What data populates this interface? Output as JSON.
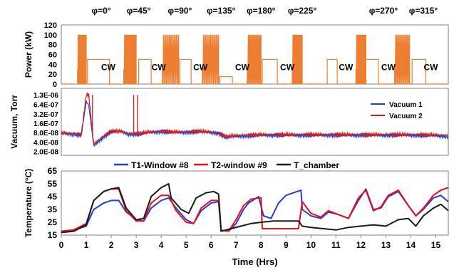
{
  "chart_data": [
    {
      "type": "line",
      "ylabel": "Power (kW)",
      "ylim": [
        0,
        120
      ],
      "yticks": [
        "0",
        "20",
        "40",
        "60",
        "80",
        "100",
        "120"
      ],
      "xlim": [
        0,
        15.5
      ],
      "grid": false,
      "phase_labels": [
        {
          "label": "φ=0°",
          "x": 1.6
        },
        {
          "label": "φ=45°",
          "x": 3.1
        },
        {
          "label": "φ=90°",
          "x": 4.75
        },
        {
          "label": "φ=135°",
          "x": 6.4
        },
        {
          "label": "φ=180°",
          "x": 8.0
        },
        {
          "label": "φ=225°",
          "x": 9.65
        },
        {
          "label": "φ=270°",
          "x": 12.9
        },
        {
          "label": "φ=315°",
          "x": 14.5
        }
      ],
      "annotations": [
        {
          "text": "CW",
          "x": 1.88,
          "y": 28
        },
        {
          "text": "CW",
          "x": 3.9,
          "y": 28
        },
        {
          "text": "CW",
          "x": 5.57,
          "y": 28
        },
        {
          "text": "CW",
          "x": 7.25,
          "y": 28
        },
        {
          "text": "CW",
          "x": 9.05,
          "y": 28
        },
        {
          "text": "CW",
          "x": 11.4,
          "y": 28
        },
        {
          "text": "CW",
          "x": 13.1,
          "y": 28
        },
        {
          "text": "CW",
          "x": 14.8,
          "y": 28
        }
      ],
      "series": [
        {
          "color": "#ed7d31",
          "baseline": 0,
          "blocks": [
            {
              "start": 0.55,
              "burst": [
                0.65,
                1.0
              ],
              "cw": [
                1.05,
                1.93
              ],
              "cw_level": 50
            },
            {
              "start": 2.5,
              "burst": [
                2.5,
                3.0
              ],
              "cw": [
                3.1,
                3.6
              ],
              "cw_level": 50
            },
            {
              "start": 4.05,
              "burst": [
                4.05,
                4.7
              ],
              "cw": [
                4.75,
                5.2
              ],
              "cw_level": 50
            },
            {
              "start": 5.65,
              "burst": [
                5.65,
                6.3
              ],
              "cw": [
                6.35,
                6.85
              ],
              "cw_level": 15
            },
            {
              "start": 7.45,
              "burst": [
                7.45,
                8.0
              ],
              "cw": [
                8.05,
                8.65
              ],
              "cw_level": 50
            },
            {
              "start": 9.25,
              "burst": [
                9.25,
                9.65
              ],
              "cw": [
                10.65,
                11.05
              ],
              "cw_level": 50
            },
            {
              "start": 11.8,
              "burst": [
                11.8,
                12.2
              ],
              "cw": [
                12.2,
                12.7
              ],
              "cw_level": 50
            },
            {
              "start": 13.35,
              "burst": [
                13.35,
                13.95
              ],
              "cw": [
                14.05,
                14.6
              ],
              "cw_level": 50
            }
          ],
          "burst_peak": 100
        }
      ]
    },
    {
      "type": "line",
      "ylabel": "Vacuum, Torr",
      "yscale": "log",
      "ylim": [
        1.5e-08,
        2.1e-06
      ],
      "yticks": [
        "2.0E-08",
        "4.0E-08",
        "8.0E-08",
        "1.6E-07",
        "3.2E-07",
        "6.4E-07",
        "1.3E-06"
      ],
      "ytick_values": [
        2e-08,
        4e-08,
        8e-08,
        1.6e-07,
        3.2e-07,
        6.4e-07,
        1.3e-06
      ],
      "xlim": [
        0,
        15.5
      ],
      "legend": "top-right",
      "series": [
        {
          "name": "Vacuum 1",
          "color": "#1f3fd8",
          "x": [
            0,
            0.5,
            0.8,
            1.0,
            1.1,
            1.3,
            1.6,
            2.0,
            2.4,
            2.7,
            3.1,
            3.5,
            4.0,
            4.5,
            5.0,
            5.5,
            6.0,
            6.3,
            6.6,
            7.0,
            8.0,
            9.0,
            10.0,
            11.0,
            12.0,
            13.0,
            14.0,
            15.0,
            15.5
          ],
          "y": [
            7.5e-08,
            7e-08,
            6.5e-08,
            8e-07,
            6e-07,
            3e-08,
            5e-08,
            8.5e-08,
            8.5e-08,
            7e-08,
            7e-08,
            8e-08,
            8.5e-08,
            8e-08,
            8e-08,
            8.5e-08,
            8e-08,
            7.5e-08,
            5.5e-08,
            6e-08,
            6.5e-08,
            6.5e-08,
            6.5e-08,
            6.5e-08,
            6.5e-08,
            6.5e-08,
            6.5e-08,
            6.3e-08,
            6e-08
          ]
        },
        {
          "name": "Vacuum 2",
          "color": "#d01c1c",
          "x": [
            0,
            0.5,
            0.8,
            1.0,
            1.1,
            1.3,
            1.6,
            2.0,
            2.4,
            2.7,
            3.1,
            3.5,
            4.0,
            4.5,
            5.0,
            5.5,
            6.0,
            6.3,
            6.6,
            7.0,
            8.0,
            9.0,
            10.0,
            11.0,
            12.0,
            13.0,
            14.0,
            15.0,
            15.5
          ],
          "y": [
            8e-08,
            7.5e-08,
            7e-08,
            1.3e-06,
            1.3e-06,
            3.5e-08,
            5.5e-08,
            9e-08,
            9e-08,
            7.5e-08,
            7.5e-08,
            8.5e-08,
            9e-08,
            8.5e-08,
            8.5e-08,
            9e-08,
            8.5e-08,
            8e-08,
            6e-08,
            6.5e-08,
            7e-08,
            7e-08,
            7e-08,
            7e-08,
            7e-08,
            7e-08,
            7e-08,
            6.8e-08,
            6.5e-08
          ],
          "spikes": [
            {
              "x": 1.25,
              "y": 1.3e-06
            },
            {
              "x": 2.9,
              "y": 1.3e-06
            },
            {
              "x": 3.05,
              "y": 1.3e-06
            }
          ]
        }
      ]
    },
    {
      "type": "line",
      "xlabel": "Time (Hrs)",
      "ylabel": "Temperature  (°C)",
      "ylim": [
        15,
        65
      ],
      "yticks": [
        "15",
        "25",
        "35",
        "45",
        "55",
        "65"
      ],
      "xlim": [
        0,
        15.5
      ],
      "xticks": [
        "0",
        "1",
        "2",
        "3",
        "4",
        "5",
        "6",
        "7",
        "8",
        "9",
        "10",
        "11",
        "12",
        "13",
        "14",
        "15"
      ],
      "legend": "top",
      "series": [
        {
          "name": "T1-Window #8",
          "color": "#1f3fd8",
          "x": [
            0,
            0.5,
            1.0,
            1.3,
            1.7,
            2.0,
            2.3,
            2.6,
            3.0,
            3.3,
            3.6,
            4.0,
            4.3,
            4.6,
            5.0,
            5.3,
            5.6,
            6.0,
            6.3,
            6.4,
            6.7,
            7.0,
            7.3,
            7.5,
            7.9,
            8.1,
            8.4,
            8.7,
            9.0,
            9.3,
            9.6,
            9.65,
            10.0,
            10.4,
            10.7,
            11.1,
            11.5,
            11.9,
            12.2,
            12.5,
            12.8,
            13.1,
            13.5,
            13.9,
            14.2,
            14.5,
            14.9,
            15.2,
            15.5
          ],
          "y": [
            18,
            19,
            22,
            35,
            40,
            42,
            42,
            33,
            27,
            26,
            36,
            42,
            44,
            36,
            27,
            24,
            34,
            40,
            41,
            19,
            18,
            24,
            35,
            40,
            45,
            30,
            28,
            40,
            46,
            48,
            50,
            35,
            30,
            28,
            33,
            31,
            28,
            42,
            51,
            35,
            36,
            45,
            49,
            38,
            30,
            35,
            44,
            46,
            41
          ]
        },
        {
          "name": "T2-window #9",
          "color": "#e8101c",
          "x": [
            0,
            0.5,
            1.0,
            1.3,
            1.7,
            2.0,
            2.3,
            2.6,
            3.0,
            3.3,
            3.6,
            4.0,
            4.3,
            4.6,
            5.0,
            5.3,
            5.6,
            6.0,
            6.3,
            6.4,
            6.7,
            7.0,
            7.3,
            7.6,
            7.9,
            8.0,
            8.05,
            8.5,
            9.0,
            9.5,
            9.65,
            10.0,
            10.4,
            10.7,
            11.1,
            11.5,
            11.9,
            12.2,
            12.5,
            12.8,
            13.1,
            13.5,
            13.9,
            14.2,
            14.5,
            14.9,
            15.2,
            15.5
          ],
          "y": [
            18,
            19,
            24,
            42,
            49,
            51,
            51,
            34,
            26,
            26,
            40,
            46,
            46,
            34,
            25,
            24,
            36,
            42,
            42,
            19,
            18,
            27,
            38,
            43,
            44,
            44,
            20,
            20,
            20,
            20,
            41,
            32,
            29,
            34,
            31,
            28,
            44,
            50,
            34,
            37,
            46,
            50,
            38,
            30,
            36,
            46,
            50,
            52
          ]
        },
        {
          "name": "T_chamber",
          "color": "#1a1a1a",
          "x": [
            0,
            0.5,
            1.0,
            1.3,
            1.7,
            2.0,
            2.3,
            2.6,
            3.0,
            3.3,
            3.6,
            4.0,
            4.3,
            4.4,
            4.8,
            5.1,
            5.4,
            5.8,
            6.1,
            6.3,
            6.4,
            6.8,
            7.2,
            7.6,
            8.0,
            8.5,
            9.0,
            9.5,
            9.65,
            10.0,
            10.5,
            11.0,
            11.5,
            12.0,
            12.5,
            13.0,
            13.5,
            13.9,
            14.2,
            14.5,
            14.9,
            15.2,
            15.5
          ],
          "y": [
            17,
            18,
            23,
            42,
            49,
            51,
            52,
            36,
            27,
            28,
            45,
            52,
            55,
            44,
            35,
            32,
            44,
            48,
            49,
            47,
            18,
            20,
            22,
            24,
            25,
            26,
            26,
            26,
            22,
            21,
            20,
            19,
            21,
            22,
            23,
            22,
            27,
            28,
            22,
            30,
            36,
            39,
            34
          ]
        }
      ]
    }
  ]
}
